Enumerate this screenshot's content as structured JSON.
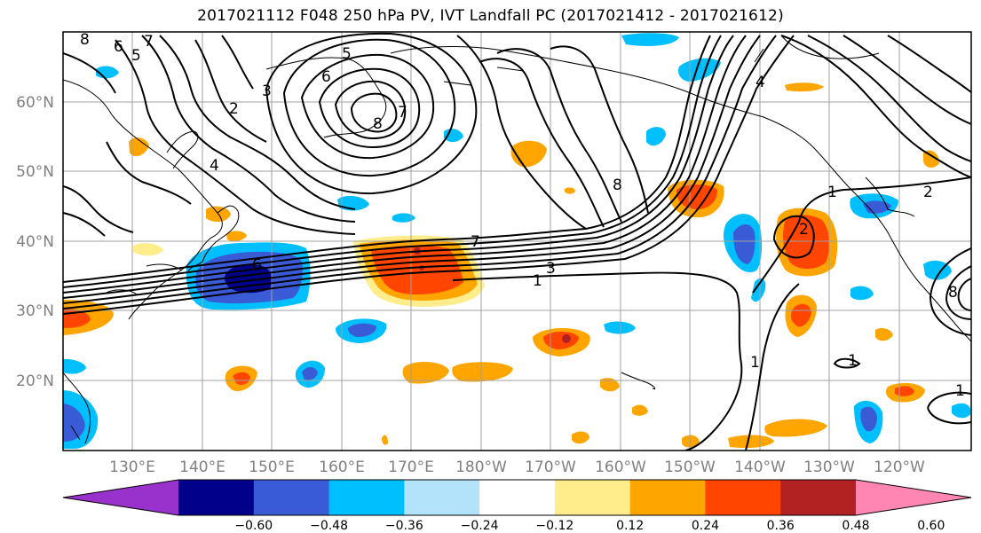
{
  "title": "2017021112 F048 250 hPa PV, IVT Landfall PC (2017021412 - 2017021612)",
  "lat_labels": [
    "60°N",
    "50°N",
    "40°N",
    "30°N",
    "20°N"
  ],
  "lon_labels": [
    "130°E",
    "140°E",
    "150°E",
    "160°E",
    "170°E",
    "180°W",
    "170°W",
    "160°W",
    "150°W",
    "140°W",
    "130°W",
    "120°W"
  ],
  "colorbar": {
    "colors": [
      "#9932cc",
      "#00008b",
      "#3a5bd6",
      "#00bfff",
      "#b3e3fb",
      "#ffffff",
      "#ffec8b",
      "#ffa500",
      "#ff4500",
      "#b22222",
      "#ff86b3"
    ],
    "labels": [
      "−0.60",
      "−0.48",
      "−0.36",
      "−0.24",
      "−0.12",
      "0.12",
      "0.24",
      "0.36",
      "0.48",
      "0.60"
    ]
  },
  "contour_labels": [
    "8",
    "6",
    "5",
    "7",
    "3",
    "6",
    "5",
    "8",
    "7",
    "2",
    "4",
    "1",
    "8",
    "6",
    "7",
    "3",
    "1",
    "1",
    "1",
    "4",
    "2",
    "8",
    "2",
    "1"
  ],
  "colors": {
    "neg_light": "#b3e3fb",
    "neg1": "#00bfff",
    "neg2": "#3a5bd6",
    "neg3": "#00008b",
    "pos1": "#ffec8b",
    "pos2": "#ffa500",
    "pos3": "#ff4500",
    "pos4": "#b22222",
    "grid": "#a0a0a0",
    "contour": "#000000",
    "axis_label": "#808080"
  }
}
